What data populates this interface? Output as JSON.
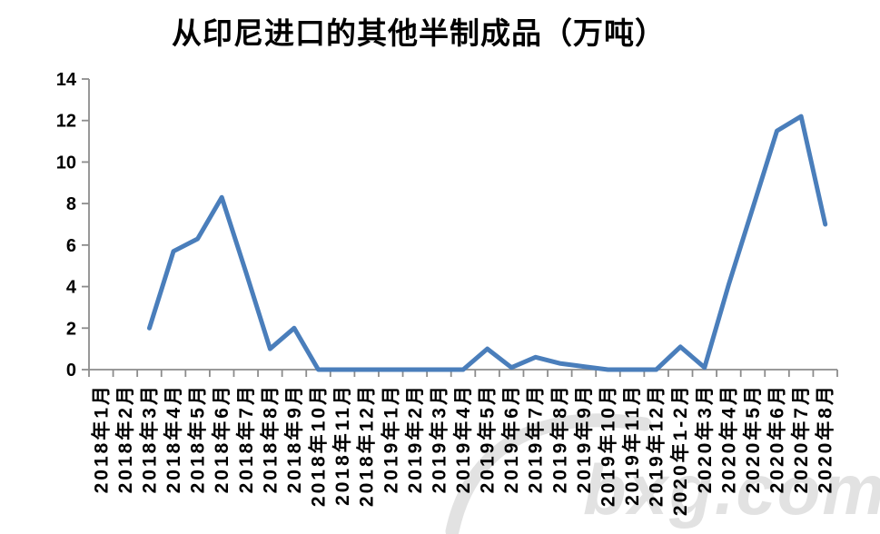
{
  "title": "从印尼进口的其他半制成品（万吨）",
  "watermark": {
    "text": "bxg.com"
  },
  "colors": {
    "line": "#4A7EBB",
    "axis": "#8C8C8C",
    "label": "#000000",
    "watermark": "#D9D9D9",
    "background": "#FFFFFF"
  },
  "chart_data": {
    "type": "line",
    "title": "从印尼进口的其他半制成品（万吨）",
    "xlabel": "",
    "ylabel": "",
    "ylim": [
      0,
      14
    ],
    "yticks": [
      0,
      2,
      4,
      6,
      8,
      10,
      12,
      14
    ],
    "grid": false,
    "legend": "none",
    "line_color": "#4A7EBB",
    "categories": [
      "2018年1月",
      "2018年2月",
      "2018年3月",
      "2018年4月",
      "2018年5月",
      "2018年6月",
      "2018年7月",
      "2018年8月",
      "2018年9月",
      "2018年10月",
      "2018年11月",
      "2018年12月",
      "2019年1月",
      "2019年2月",
      "2019年3月",
      "2019年4月",
      "2019年5月",
      "2019年6月",
      "2019年7月",
      "2019年8月",
      "2019年9月",
      "2019年10月",
      "2019年11月",
      "2019年12月",
      "2020年1-2月",
      "2020年3月",
      "2020年4月",
      "2020年5月",
      "2020年6月",
      "2020年7月",
      "2020年8月"
    ],
    "values": [
      null,
      null,
      2.0,
      5.7,
      6.3,
      8.3,
      4.7,
      1.0,
      2.0,
      0,
      0,
      0,
      0,
      0,
      0,
      0,
      1.0,
      0.1,
      0.6,
      0.3,
      0.15,
      0,
      0,
      0,
      1.1,
      0.1,
      4.1,
      7.8,
      11.5,
      12.2,
      7.0
    ]
  }
}
